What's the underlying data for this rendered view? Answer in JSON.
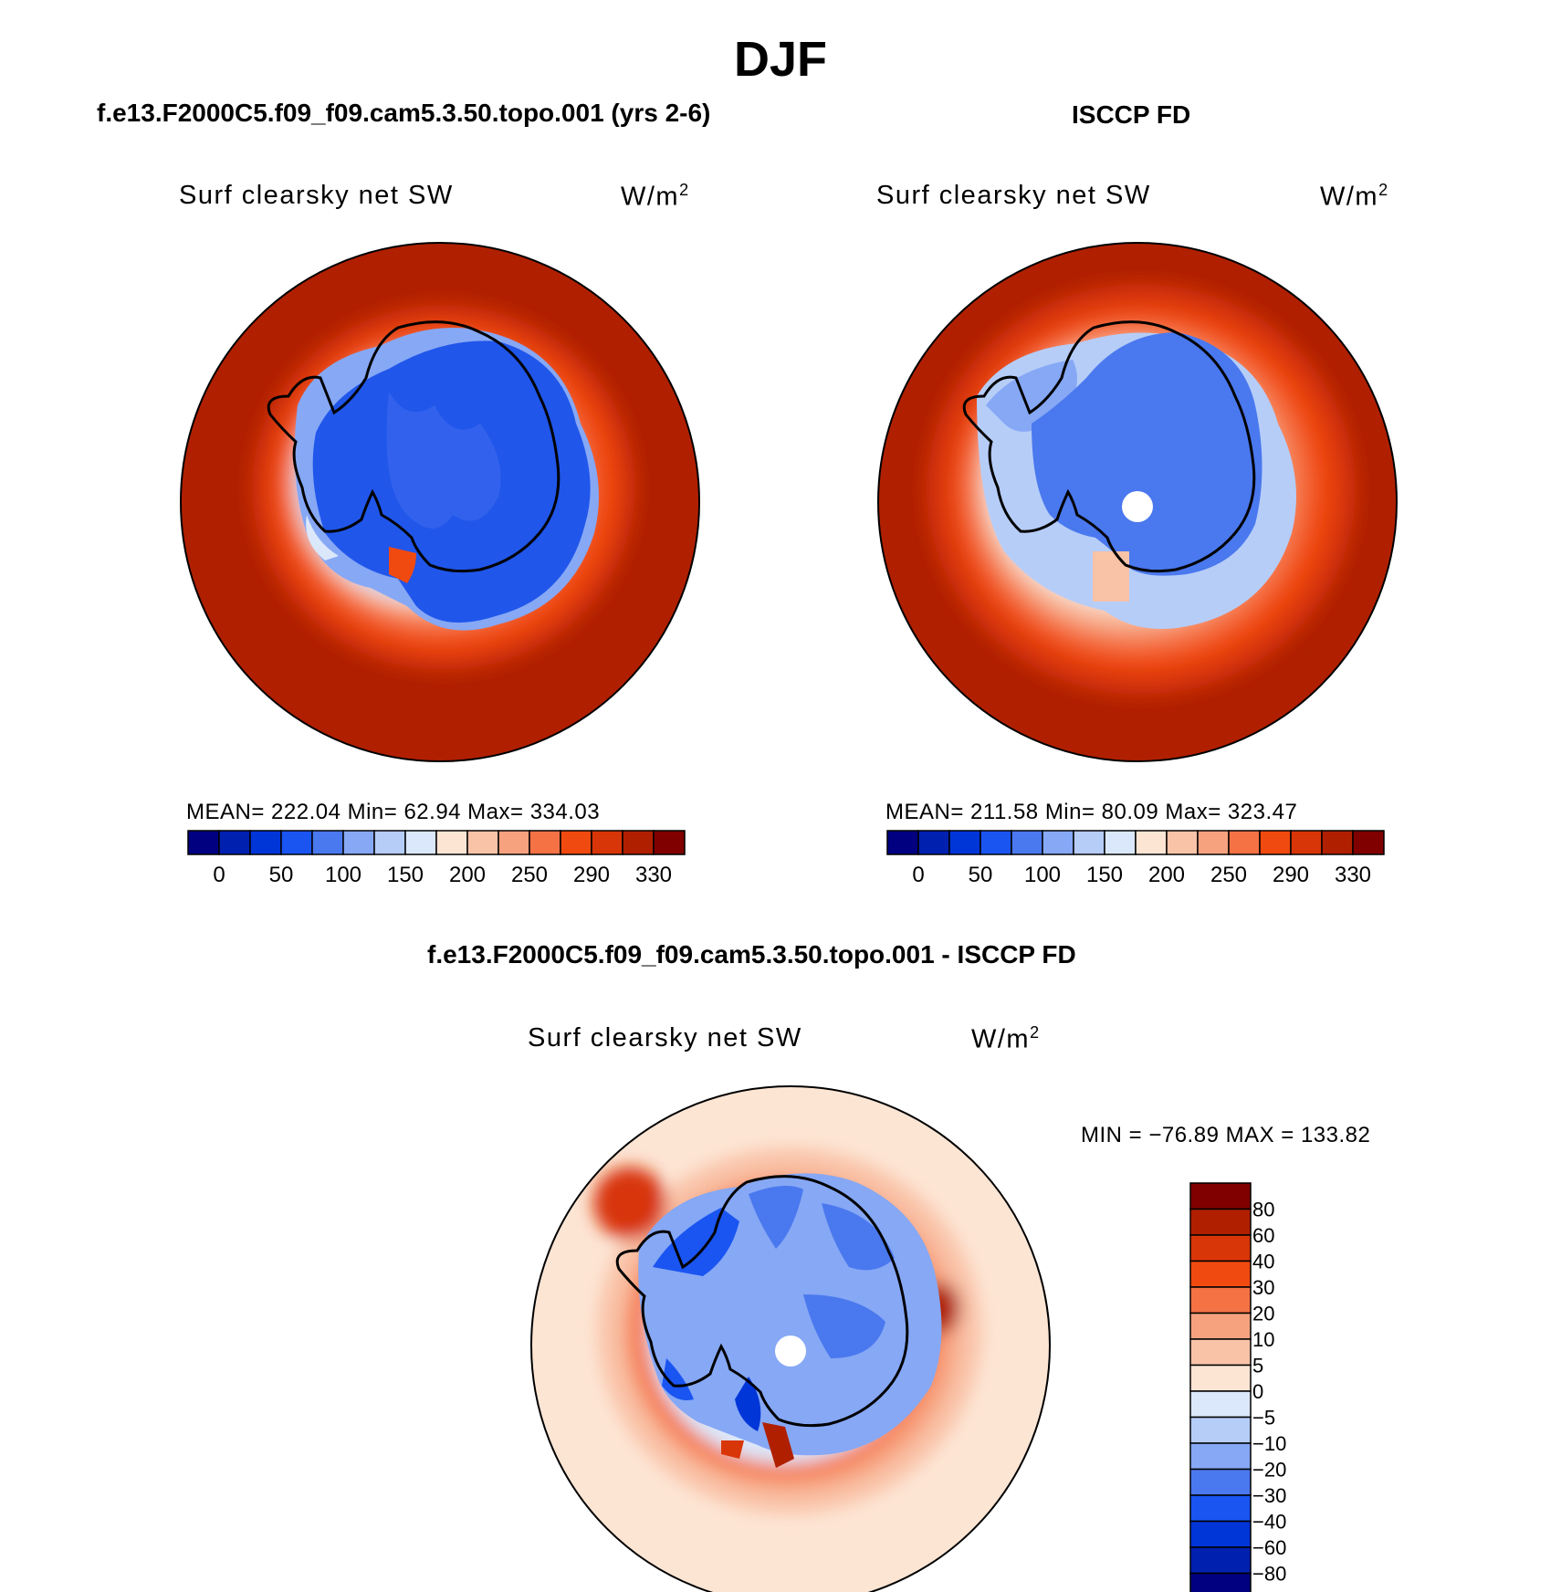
{
  "title": "DJF",
  "panels": [
    {
      "title": "f.e13.F2000C5.f09_f09.cam5.3.50.topo.001 (yrs 2-6)",
      "variable": "Surf clearsky net SW",
      "units": "W/m",
      "units_exp": "2",
      "stats": "MEAN= 222.04   Min=   62.94   Max= 334.03"
    },
    {
      "title": "ISCCP FD",
      "variable": "Surf clearsky net SW",
      "units": "W/m",
      "units_exp": "2",
      "stats": "MEAN= 211.58   Min=   80.09   Max= 323.47"
    },
    {
      "title": "f.e13.F2000C5.f09_f09.cam5.3.50.topo.001 - ISCCP FD",
      "variable": "Surf clearsky net SW",
      "units": "W/m",
      "units_exp": "2",
      "stats": "MIN = −76.89  MAX = 133.82"
    }
  ],
  "colorbar_abs": {
    "colors": [
      "#000080",
      "#0020b0",
      "#0035d8",
      "#1a55f2",
      "#4a78ee",
      "#86a8f5",
      "#b6cdf8",
      "#dbe8fb",
      "#fde5d4",
      "#f9c3a8",
      "#f7a27f",
      "#f57245",
      "#f04a10",
      "#d83608",
      "#b02000",
      "#800000"
    ],
    "labels": [
      "0",
      "50",
      "100",
      "150",
      "200",
      "250",
      "290",
      "330"
    ]
  },
  "colorbar_diff": {
    "colors": [
      "#000080",
      "#0020b0",
      "#0035d8",
      "#1a55f2",
      "#4a78ee",
      "#86a8f5",
      "#b6cdf8",
      "#dbe8fb",
      "#fde5d4",
      "#f9c3a8",
      "#f7a27f",
      "#f57245",
      "#f04a10",
      "#d83608",
      "#b02000",
      "#800000"
    ],
    "labels": [
      "80",
      "60",
      "40",
      "30",
      "20",
      "10",
      "5",
      "0",
      "−5",
      "−10",
      "−20",
      "−30",
      "−40",
      "−60",
      "−80"
    ]
  }
}
